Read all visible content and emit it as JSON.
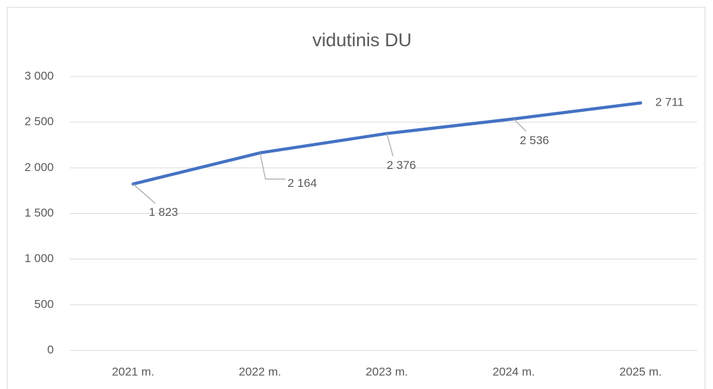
{
  "chart_data": {
    "type": "line",
    "title": "vidutinis DU",
    "categories": [
      "2021 m.",
      "2022 m.",
      "2023 m.",
      "2024 m.",
      "2025 m."
    ],
    "series": [
      {
        "name": "vidutinis DU",
        "color": "#4472c4",
        "values": [
          1823,
          2164,
          2376,
          2536,
          2711
        ],
        "value_labels": [
          "1 823",
          "2 164",
          "2 376",
          "2 536",
          "2 711"
        ]
      }
    ],
    "ylim": [
      0,
      3000
    ],
    "yticks": [
      0,
      500,
      {
        "value": 1000,
        "label": "1 000"
      },
      {
        "value": 1500,
        "label": "1 500"
      },
      {
        "value": 2000,
        "label": "2 000"
      },
      {
        "value": 2500,
        "label": "2 500"
      },
      {
        "value": 3000,
        "label": "3 000"
      }
    ],
    "grid": true
  }
}
